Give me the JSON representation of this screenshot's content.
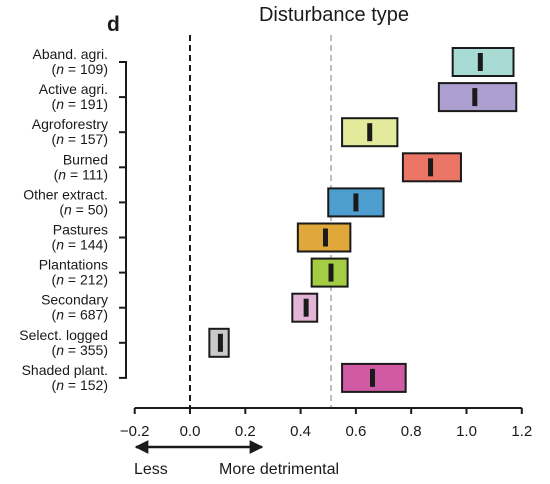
{
  "chart_data": {
    "type": "box",
    "panel_label": "d",
    "title": "Disturbance type",
    "xlim": [
      -0.2,
      1.2
    ],
    "x_ticks": [
      -0.2,
      0.0,
      0.2,
      0.4,
      0.6,
      0.8,
      1.0,
      1.2
    ],
    "x_tick_labels": [
      "−0.2",
      "0.0",
      "0.2",
      "0.4",
      "0.6",
      "0.8",
      "1.0",
      "1.2"
    ],
    "reference_lines": [
      {
        "x": 0.0,
        "style": "dashed",
        "color": "#1a1a1a"
      },
      {
        "x": 0.51,
        "style": "dashed",
        "color": "#bdbdbd"
      }
    ],
    "annotation": {
      "left": "Less",
      "right": "More detrimental"
    },
    "categories": [
      {
        "name": "Aband. agri.",
        "n_text": "109",
        "low": 0.95,
        "high": 1.17,
        "median": 1.05,
        "color": "#a8dbd3"
      },
      {
        "name": "Active agri.",
        "n_text": "191",
        "low": 0.9,
        "high": 1.18,
        "median": 1.03,
        "color": "#ac9fcf"
      },
      {
        "name": "Agroforestry",
        "n_text": "157",
        "low": 0.55,
        "high": 0.75,
        "median": 0.65,
        "color": "#e4ea9c"
      },
      {
        "name": "Burned",
        "n_text": "111",
        "low": 0.77,
        "high": 0.98,
        "median": 0.87,
        "color": "#ea7564"
      },
      {
        "name": "Other extract.",
        "n_text": "50",
        "low": 0.5,
        "high": 0.7,
        "median": 0.6,
        "color": "#4e9ed0"
      },
      {
        "name": "Pastures",
        "n_text": "144",
        "low": 0.39,
        "high": 0.58,
        "median": 0.49,
        "color": "#e0a83b"
      },
      {
        "name": "Plantations",
        "n_text": "212",
        "low": 0.44,
        "high": 0.57,
        "median": 0.51,
        "color": "#a5cd44"
      },
      {
        "name": "Secondary",
        "n_text": "687",
        "low": 0.37,
        "high": 0.46,
        "median": 0.42,
        "color": "#e4b4d7"
      },
      {
        "name": "Select. logged",
        "n_text": "355",
        "low": 0.07,
        "high": 0.14,
        "median": 0.11,
        "color": "#c9c9c9"
      },
      {
        "name": "Shaded plant.",
        "n_text": "152",
        "low": 0.55,
        "high": 0.78,
        "median": 0.66,
        "color": "#d05ba4"
      }
    ]
  }
}
